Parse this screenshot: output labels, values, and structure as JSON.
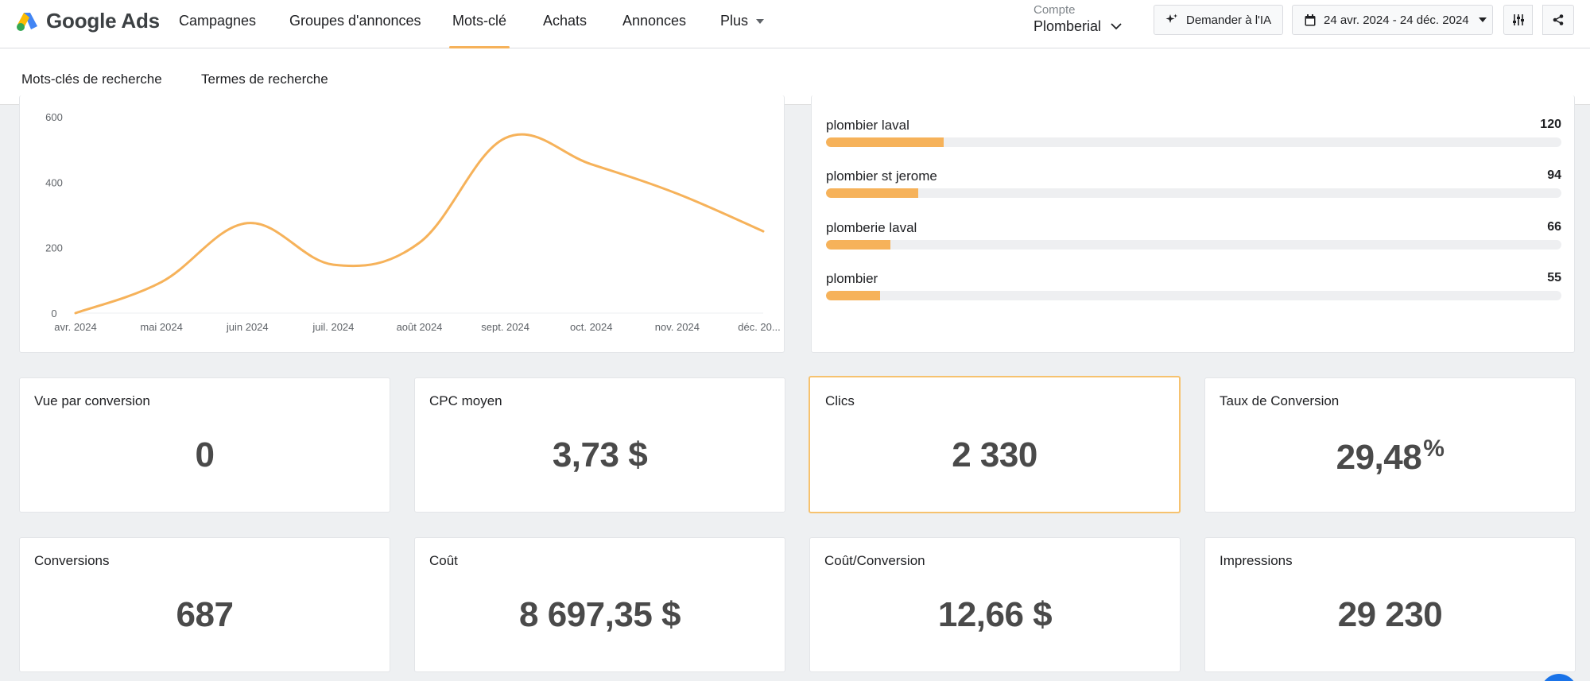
{
  "header": {
    "logo_text": "Google Ads",
    "nav": [
      {
        "label": "Campagnes"
      },
      {
        "label": "Groupes d'annonces"
      },
      {
        "label": "Mots-clé",
        "active": true
      },
      {
        "label": "Achats"
      },
      {
        "label": "Annonces"
      },
      {
        "label": "Plus"
      }
    ],
    "account_label": "Compte",
    "account_name": "Plomberial",
    "ai_button": "Demander à l'IA",
    "date_range": "24 avr. 2024 - 24 déc. 2024"
  },
  "subtabs": [
    {
      "label": "Mots-clés de recherche"
    },
    {
      "label": "Termes de recherche",
      "active": true
    }
  ],
  "chart_data": {
    "type": "line",
    "x": [
      "avr. 2024",
      "mai 2024",
      "juin 2024",
      "juil. 2024",
      "août 2024",
      "sept. 2024",
      "oct. 2024",
      "nov. 2024",
      "déc. 20..."
    ],
    "y": [
      0,
      95,
      275,
      148,
      215,
      535,
      455,
      365,
      250
    ],
    "yticks": [
      0,
      200,
      400,
      600
    ],
    "ylim": [
      0,
      600
    ],
    "color": "#f6b25a",
    "grid": false,
    "title": "",
    "xlabel": "",
    "ylabel": ""
  },
  "top_terms": {
    "max": 750,
    "items": [
      {
        "term": "plombier laval",
        "value": 120
      },
      {
        "term": "plombier st jerome",
        "value": 94
      },
      {
        "term": "plomberie laval",
        "value": 66
      },
      {
        "term": "plombier",
        "value": 55
      }
    ]
  },
  "kpis": {
    "vue_par_conversion": {
      "label": "Vue par conversion",
      "value": "0"
    },
    "cpc_moyen": {
      "label": "CPC moyen",
      "value": "3,73 $"
    },
    "clics": {
      "label": "Clics",
      "value": "2 330"
    },
    "taux_conversion": {
      "label": "Taux de Conversion",
      "value": "29,48",
      "unit": "%"
    },
    "conversions": {
      "label": "Conversions",
      "value": "687"
    },
    "cout": {
      "label": "Coût",
      "value": "8 697,35 $"
    },
    "cout_conversion": {
      "label": "Coût/Conversion",
      "value": "12,66 $"
    },
    "impressions": {
      "label": "Impressions",
      "value": "29 230"
    }
  },
  "colors": {
    "accent": "#f6b25a",
    "brand_blue": "#4285f4",
    "brand_yellow": "#fbbc04",
    "brand_green": "#34a853"
  },
  "icons": [
    "google-ads-logo",
    "sparkle-icon",
    "calendar-icon",
    "chevron-down-icon",
    "sliders-icon",
    "share-icon"
  ]
}
